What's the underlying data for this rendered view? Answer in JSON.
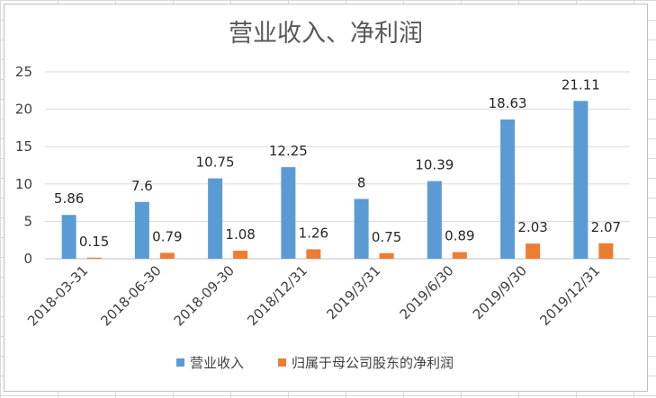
{
  "chart_data": {
    "type": "bar",
    "title": "营业收入、净利润",
    "categories": [
      "2018-03-31",
      "2018-06-30",
      "2018-09-30",
      "2018/12/31",
      "2019/3/31",
      "2019/6/30",
      "2019/9/30",
      "2019/12/31"
    ],
    "series": [
      {
        "name": "营业收入",
        "color": "#5b9bd5",
        "values": [
          5.86,
          7.6,
          10.75,
          12.25,
          8,
          10.39,
          18.63,
          21.11
        ]
      },
      {
        "name": "归属于母公司股东的净利润",
        "color": "#ed7d31",
        "values": [
          0.15,
          0.79,
          1.08,
          1.26,
          0.75,
          0.89,
          2.03,
          2.07
        ]
      }
    ],
    "ylim": [
      0,
      25
    ],
    "yticks": [
      0,
      5,
      10,
      15,
      20,
      25
    ],
    "grid": true,
    "legend_position": "bottom"
  }
}
